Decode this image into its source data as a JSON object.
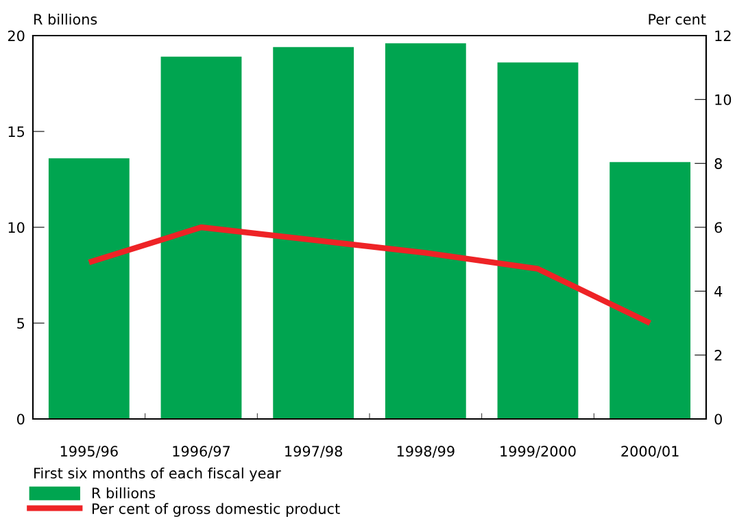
{
  "chart_data": {
    "type": "bar",
    "ylabel": "R billions",
    "y2label": "Per cent",
    "legend_title": "First six months of each fiscal year",
    "categories": [
      "1995/96",
      "1996/97",
      "1997/98",
      "1998/99",
      "1999/2000",
      "2000/01"
    ],
    "series": [
      {
        "name": "R billions",
        "color": "#00a550",
        "values": [
          13.6,
          18.9,
          19.4,
          19.6,
          18.6,
          13.4
        ]
      },
      {
        "name": "Per cent of gross domestic product",
        "type": "line",
        "axis": "y2",
        "color": "#ee2326",
        "values": [
          4.9,
          6.0,
          5.6,
          5.2,
          4.7,
          3.0
        ]
      }
    ],
    "ylim": [
      0,
      20
    ],
    "yticks": [
      0,
      5,
      10,
      15,
      20
    ],
    "y2lim": [
      0,
      12
    ],
    "y2ticks": [
      0,
      2,
      4,
      6,
      8,
      10,
      12
    ],
    "grid": false,
    "legend": "bottom",
    "marker": "none",
    "line_style": "solid"
  }
}
